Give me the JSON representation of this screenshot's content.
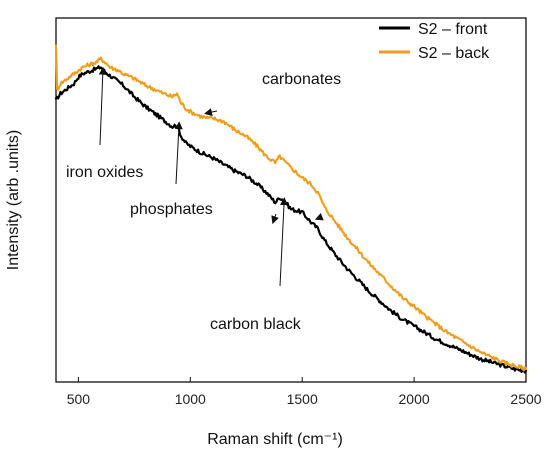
{
  "chart_data": {
    "type": "line",
    "title": "",
    "xlabel": "Raman shift (cm⁻¹)",
    "ylabel": "Intensity (arb .units)",
    "xlim": [
      400,
      2500
    ],
    "xticks": [
      500,
      1000,
      1500,
      2000,
      2500
    ],
    "xtick_labels": [
      "500",
      "1000",
      "1500",
      "2000",
      "2500"
    ],
    "y_ticks_visible": false,
    "ylim": [
      0,
      1
    ],
    "grid": false,
    "legend_position": "top-right",
    "series": [
      {
        "name": "S2 – front",
        "color": "#000000",
        "x": [
          400,
          420,
          440,
          460,
          480,
          500,
          520,
          540,
          560,
          580,
          600,
          620,
          640,
          660,
          680,
          700,
          750,
          800,
          850,
          880,
          900,
          920,
          940,
          960,
          980,
          1000,
          1050,
          1100,
          1150,
          1200,
          1250,
          1300,
          1340,
          1380,
          1400,
          1420,
          1450,
          1500,
          1540,
          1570,
          1600,
          1650,
          1700,
          1750,
          1800,
          1850,
          1900,
          1950,
          2000,
          2050,
          2100,
          2150,
          2200,
          2250,
          2300,
          2350,
          2400,
          2450,
          2500
        ],
        "y": [
          0.83,
          0.85,
          0.86,
          0.87,
          0.88,
          0.9,
          0.91,
          0.915,
          0.92,
          0.925,
          0.93,
          0.915,
          0.905,
          0.895,
          0.885,
          0.875,
          0.84,
          0.81,
          0.785,
          0.77,
          0.76,
          0.75,
          0.755,
          0.72,
          0.7,
          0.69,
          0.67,
          0.655,
          0.635,
          0.615,
          0.6,
          0.575,
          0.55,
          0.52,
          0.535,
          0.525,
          0.5,
          0.49,
          0.46,
          0.44,
          0.405,
          0.36,
          0.32,
          0.285,
          0.25,
          0.22,
          0.19,
          0.165,
          0.145,
          0.125,
          0.105,
          0.09,
          0.075,
          0.06,
          0.045,
          0.035,
          0.025,
          0.015,
          0.01
        ]
      },
      {
        "name": "S2 – back",
        "color": "#f39c1a",
        "x": [
          400,
          405,
          420,
          440,
          460,
          480,
          500,
          520,
          540,
          560,
          580,
          600,
          620,
          640,
          660,
          680,
          700,
          750,
          800,
          850,
          880,
          900,
          920,
          940,
          960,
          980,
          1000,
          1050,
          1080,
          1100,
          1150,
          1200,
          1250,
          1300,
          1340,
          1380,
          1400,
          1420,
          1450,
          1500,
          1540,
          1570,
          1600,
          1650,
          1700,
          1750,
          1800,
          1850,
          1900,
          1950,
          2000,
          2050,
          2100,
          2150,
          2200,
          2250,
          2300,
          2350,
          2400,
          2450,
          2500
        ],
        "y": [
          1.0,
          0.86,
          0.88,
          0.89,
          0.9,
          0.91,
          0.92,
          0.93,
          0.935,
          0.94,
          0.945,
          0.955,
          0.945,
          0.93,
          0.925,
          0.92,
          0.91,
          0.895,
          0.875,
          0.86,
          0.85,
          0.845,
          0.84,
          0.85,
          0.82,
          0.805,
          0.795,
          0.78,
          0.775,
          0.775,
          0.765,
          0.74,
          0.72,
          0.69,
          0.66,
          0.64,
          0.66,
          0.645,
          0.625,
          0.595,
          0.575,
          0.55,
          0.505,
          0.46,
          0.415,
          0.375,
          0.335,
          0.3,
          0.265,
          0.23,
          0.205,
          0.175,
          0.15,
          0.125,
          0.105,
          0.085,
          0.065,
          0.05,
          0.035,
          0.025,
          0.015
        ]
      }
    ],
    "annotations": [
      {
        "text": "iron oxides",
        "target": [
          610,
          0.925
        ]
      },
      {
        "text": "phosphates",
        "target": [
          950,
          0.76
        ]
      },
      {
        "text": "carbonates",
        "target": [
          1070,
          0.79
        ]
      },
      {
        "text": "carbon black",
        "target": [
          1420,
          0.53
        ]
      },
      {
        "text": "carbon black",
        "target": [
          1565,
          0.47
        ],
        "arrow_only": true
      },
      {
        "text": "carbon black",
        "target": [
          1370,
          0.46
        ],
        "arrow_only": true
      }
    ]
  }
}
